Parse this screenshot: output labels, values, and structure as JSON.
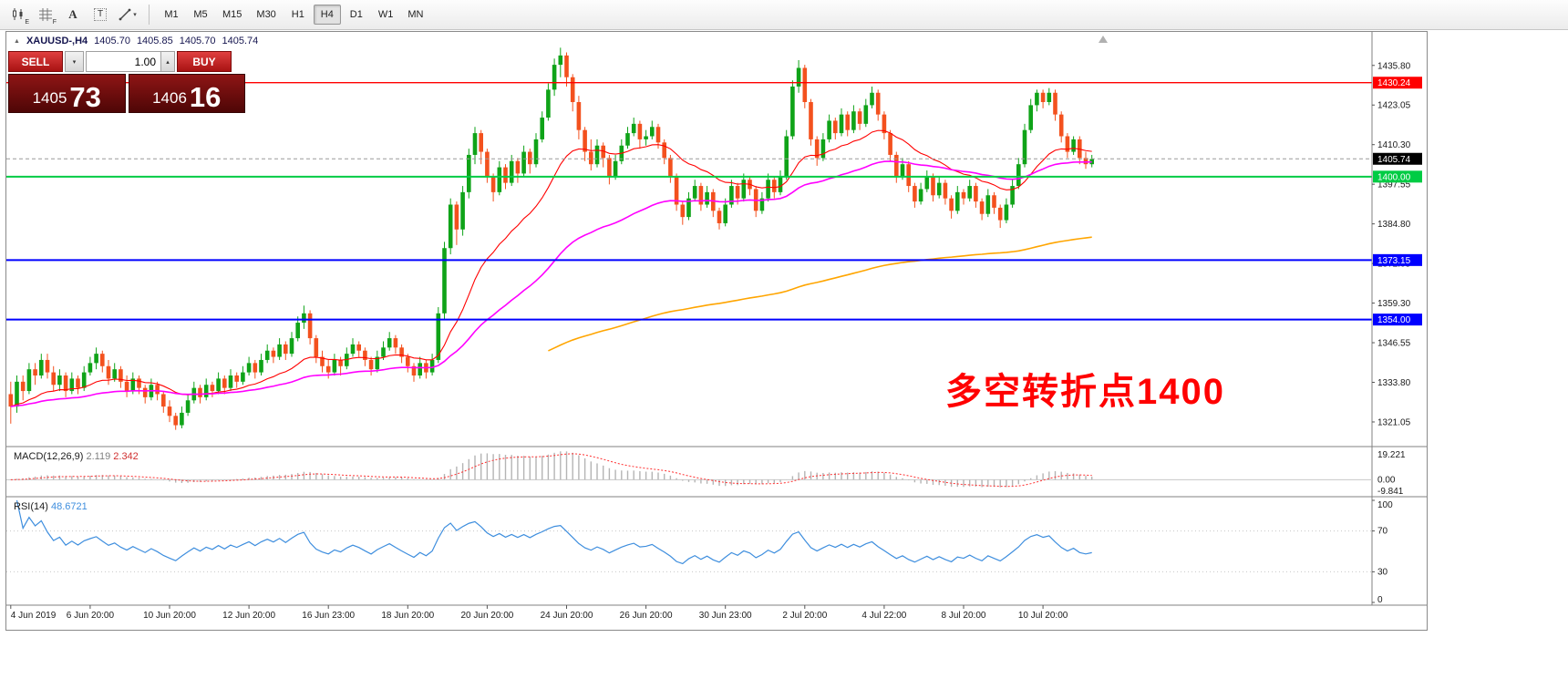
{
  "toolbar": {
    "timeframes": [
      "M1",
      "M5",
      "M15",
      "M30",
      "H1",
      "H4",
      "D1",
      "W1",
      "MN"
    ],
    "active_timeframe": "H4",
    "letter_a": "A",
    "letter_t": "T",
    "sub_e": "E",
    "sub_f": "F"
  },
  "icons": {
    "dropdown_caret": "▾",
    "spinner_up": "▴",
    "collapse_arrow": "▲"
  },
  "header": {
    "symbol": "XAUUSD-,H4",
    "open": "1405.70",
    "high": "1405.85",
    "low": "1405.70",
    "close": "1405.74"
  },
  "trade_panel": {
    "sell_label": "SELL",
    "buy_label": "BUY",
    "lot_value": "1.00",
    "sell_price": "1405",
    "sell_pips": "73",
    "buy_price": "1406",
    "buy_pips": "16"
  },
  "annotation": {
    "text": "多空转折点1400"
  },
  "colors": {
    "up": "#0FA318",
    "down": "#F3511E",
    "macd_hist": "#B4B4B4",
    "macd_signal": "#FF3030",
    "rsi": "#3E8EDE",
    "price_marker_bg": "#000000"
  },
  "chart_data": {
    "type": "candlestick",
    "symbol": "XAUUSD-",
    "timeframe": "H4",
    "price_axis": {
      "min": 1314,
      "max": 1446,
      "ticks": [
        1435.8,
        1423.05,
        1410.3,
        1397.55,
        1384.8,
        1372.05,
        1359.3,
        1346.55,
        1333.8,
        1321.05
      ]
    },
    "hlines": [
      {
        "price": 1430.24,
        "color": "#FF0000",
        "label": "1430.24",
        "width": 1.4
      },
      {
        "price": 1400.0,
        "color": "#00CC44",
        "label": "1400.00",
        "width": 2
      },
      {
        "price": 1373.15,
        "color": "#0000FF",
        "label": "1373.15",
        "width": 2
      },
      {
        "price": 1354.0,
        "color": "#0000FF",
        "label": "1354.00",
        "width": 2
      }
    ],
    "current_price": {
      "value": 1405.74,
      "label": "1405.74"
    },
    "moving_averages": [
      {
        "name": "ma-fast",
        "period": 20,
        "color": "#FF0000",
        "width": 1.1,
        "from": 0
      },
      {
        "name": "ma-mid",
        "period": 55,
        "color": "#FF00FF",
        "width": 1.6,
        "from": 0
      },
      {
        "name": "ma-slow",
        "period": 200,
        "color": "#FFA500",
        "width": 1.6,
        "from": 88
      }
    ],
    "candles": [
      [
        1330,
        1334,
        1320.5,
        1326
      ],
      [
        1326,
        1336,
        1324,
        1334
      ],
      [
        1334,
        1336,
        1328,
        1331
      ],
      [
        1331,
        1340,
        1330,
        1338
      ],
      [
        1338,
        1340,
        1333,
        1336
      ],
      [
        1336,
        1343,
        1335,
        1341
      ],
      [
        1341,
        1343,
        1335,
        1337
      ],
      [
        1337,
        1339,
        1331,
        1333
      ],
      [
        1333,
        1338,
        1331,
        1336
      ],
      [
        1336,
        1337,
        1329,
        1331
      ],
      [
        1331,
        1337,
        1330,
        1335
      ],
      [
        1335,
        1336,
        1330,
        1332
      ],
      [
        1332,
        1339,
        1331,
        1337
      ],
      [
        1337,
        1342,
        1336,
        1340
      ],
      [
        1340,
        1345,
        1338,
        1343
      ],
      [
        1343,
        1344,
        1337,
        1339
      ],
      [
        1339,
        1341,
        1333,
        1335
      ],
      [
        1335,
        1340,
        1334,
        1338
      ],
      [
        1338,
        1339,
        1332,
        1334
      ],
      [
        1334,
        1336,
        1329,
        1331
      ],
      [
        1331,
        1337,
        1330,
        1335
      ],
      [
        1335,
        1336,
        1330,
        1332
      ],
      [
        1332,
        1333,
        1327,
        1329
      ],
      [
        1329,
        1335,
        1328,
        1333
      ],
      [
        1333,
        1334,
        1328,
        1330
      ],
      [
        1330,
        1331,
        1324,
        1326
      ],
      [
        1326,
        1328,
        1321,
        1323
      ],
      [
        1323,
        1324,
        1318.5,
        1320
      ],
      [
        1320,
        1326,
        1319,
        1324
      ],
      [
        1324,
        1330,
        1323,
        1328
      ],
      [
        1328,
        1334,
        1327,
        1332
      ],
      [
        1332,
        1333,
        1327,
        1329
      ],
      [
        1329,
        1335,
        1328,
        1333
      ],
      [
        1333,
        1334,
        1329,
        1331
      ],
      [
        1331,
        1337,
        1330,
        1335
      ],
      [
        1335,
        1336,
        1330,
        1332
      ],
      [
        1332,
        1338,
        1331,
        1336
      ],
      [
        1336,
        1337,
        1332,
        1334
      ],
      [
        1334,
        1339,
        1333,
        1337
      ],
      [
        1337,
        1342,
        1336,
        1340
      ],
      [
        1340,
        1341,
        1335,
        1337
      ],
      [
        1337,
        1343,
        1336,
        1341
      ],
      [
        1341,
        1346,
        1340,
        1344
      ],
      [
        1344,
        1345,
        1340,
        1342
      ],
      [
        1342,
        1348,
        1341,
        1346
      ],
      [
        1346,
        1347,
        1341,
        1343
      ],
      [
        1343,
        1350,
        1342,
        1348
      ],
      [
        1348,
        1355,
        1347,
        1353
      ],
      [
        1353,
        1358.5,
        1351,
        1356
      ],
      [
        1356,
        1357,
        1346,
        1348
      ],
      [
        1348,
        1349,
        1340,
        1342
      ],
      [
        1342,
        1344,
        1337,
        1339
      ],
      [
        1339,
        1341,
        1335,
        1337
      ],
      [
        1337,
        1343,
        1336,
        1341
      ],
      [
        1341,
        1342,
        1336,
        1339
      ],
      [
        1339,
        1345,
        1338,
        1343
      ],
      [
        1343,
        1348,
        1342,
        1346
      ],
      [
        1346,
        1347,
        1342,
        1344
      ],
      [
        1344,
        1345,
        1339,
        1341
      ],
      [
        1341,
        1342,
        1336,
        1338
      ],
      [
        1338,
        1344,
        1337,
        1342
      ],
      [
        1342,
        1347,
        1341,
        1345
      ],
      [
        1345,
        1350,
        1344,
        1348
      ],
      [
        1348,
        1349,
        1343,
        1345
      ],
      [
        1345,
        1346,
        1340,
        1342
      ],
      [
        1342,
        1343,
        1337,
        1339
      ],
      [
        1339,
        1340,
        1334,
        1336
      ],
      [
        1336,
        1342,
        1335,
        1340
      ],
      [
        1340,
        1341,
        1335,
        1337
      ],
      [
        1337,
        1343,
        1336,
        1341
      ],
      [
        1341,
        1358,
        1340,
        1356
      ],
      [
        1356,
        1379,
        1354,
        1377
      ],
      [
        1377,
        1393,
        1375,
        1391
      ],
      [
        1391,
        1392,
        1378,
        1383
      ],
      [
        1383,
        1397,
        1381,
        1395
      ],
      [
        1395,
        1409,
        1393,
        1407
      ],
      [
        1407,
        1416,
        1404,
        1414
      ],
      [
        1414,
        1415,
        1404,
        1408
      ],
      [
        1408,
        1409,
        1398,
        1400
      ],
      [
        1400,
        1401,
        1392,
        1395
      ],
      [
        1395,
        1405,
        1394,
        1403
      ],
      [
        1403,
        1404,
        1396,
        1398
      ],
      [
        1398,
        1407,
        1397,
        1405
      ],
      [
        1405,
        1406,
        1398,
        1401
      ],
      [
        1401,
        1410,
        1400,
        1408
      ],
      [
        1408,
        1409,
        1401,
        1404
      ],
      [
        1404,
        1414,
        1403,
        1412
      ],
      [
        1412,
        1421,
        1411,
        1419
      ],
      [
        1419,
        1430,
        1418,
        1428
      ],
      [
        1428,
        1438,
        1426,
        1436
      ],
      [
        1436,
        1441.5,
        1432,
        1439
      ],
      [
        1439,
        1440,
        1429,
        1432
      ],
      [
        1432,
        1433,
        1421,
        1424
      ],
      [
        1424,
        1426,
        1412,
        1415
      ],
      [
        1415,
        1416,
        1405,
        1408
      ],
      [
        1408,
        1412,
        1402,
        1404
      ],
      [
        1404,
        1412,
        1403,
        1410
      ],
      [
        1410,
        1411,
        1403,
        1406
      ],
      [
        1406,
        1407,
        1397.5,
        1400
      ],
      [
        1400,
        1407,
        1399,
        1405
      ],
      [
        1405,
        1412,
        1404,
        1410
      ],
      [
        1410,
        1416,
        1409,
        1414
      ],
      [
        1414,
        1419,
        1413,
        1417
      ],
      [
        1417,
        1418,
        1409,
        1412
      ],
      [
        1412,
        1415,
        1410,
        1413
      ],
      [
        1413,
        1418,
        1412,
        1416
      ],
      [
        1416,
        1417,
        1409,
        1411
      ],
      [
        1411,
        1412,
        1404,
        1406
      ],
      [
        1406,
        1407,
        1398,
        1400
      ],
      [
        1400,
        1401,
        1389,
        1391
      ],
      [
        1391,
        1392,
        1384.5,
        1387
      ],
      [
        1387,
        1395,
        1386,
        1393
      ],
      [
        1393,
        1399,
        1392,
        1397
      ],
      [
        1397,
        1398,
        1389,
        1391
      ],
      [
        1391,
        1397,
        1390,
        1395
      ],
      [
        1395,
        1396,
        1387,
        1389
      ],
      [
        1389,
        1390,
        1383,
        1385
      ],
      [
        1385,
        1393,
        1384,
        1391
      ],
      [
        1391,
        1399,
        1390,
        1397
      ],
      [
        1397,
        1398,
        1391,
        1393
      ],
      [
        1393,
        1401,
        1392,
        1399
      ],
      [
        1399,
        1400,
        1394,
        1396
      ],
      [
        1396,
        1397,
        1387,
        1389
      ],
      [
        1389,
        1395,
        1388,
        1393
      ],
      [
        1393,
        1401,
        1392,
        1399
      ],
      [
        1399,
        1400,
        1393,
        1395
      ],
      [
        1395,
        1402,
        1394,
        1400
      ],
      [
        1400,
        1415,
        1399,
        1413
      ],
      [
        1413,
        1431,
        1412,
        1429
      ],
      [
        1429,
        1437.5,
        1427,
        1435
      ],
      [
        1435,
        1436,
        1422,
        1424
      ],
      [
        1424,
        1425,
        1410,
        1412
      ],
      [
        1412,
        1413,
        1403.5,
        1406
      ],
      [
        1406,
        1414,
        1405,
        1412
      ],
      [
        1412,
        1420,
        1411,
        1418
      ],
      [
        1418,
        1419,
        1412,
        1414
      ],
      [
        1414,
        1422,
        1413,
        1420
      ],
      [
        1420,
        1421,
        1413,
        1415
      ],
      [
        1415,
        1423,
        1414,
        1421
      ],
      [
        1421,
        1422,
        1415,
        1417
      ],
      [
        1417,
        1425,
        1416,
        1423
      ],
      [
        1423,
        1429,
        1422,
        1427
      ],
      [
        1427,
        1428,
        1418,
        1420
      ],
      [
        1420,
        1421,
        1412,
        1414
      ],
      [
        1414,
        1415,
        1405,
        1407
      ],
      [
        1407,
        1408,
        1398,
        1400
      ],
      [
        1400,
        1406,
        1399,
        1404
      ],
      [
        1404,
        1405,
        1395,
        1397
      ],
      [
        1397,
        1398,
        1390,
        1392
      ],
      [
        1392,
        1398,
        1391,
        1396
      ],
      [
        1396,
        1402,
        1395,
        1400
      ],
      [
        1400,
        1401,
        1392,
        1394
      ],
      [
        1394,
        1400,
        1393,
        1398
      ],
      [
        1398,
        1399,
        1391,
        1393
      ],
      [
        1393,
        1394,
        1386.5,
        1389
      ],
      [
        1389,
        1397,
        1388,
        1395
      ],
      [
        1395,
        1396,
        1391,
        1393
      ],
      [
        1393,
        1399,
        1392,
        1397
      ],
      [
        1397,
        1398,
        1390,
        1392
      ],
      [
        1392,
        1393,
        1386,
        1388
      ],
      [
        1388,
        1396,
        1387,
        1394
      ],
      [
        1394,
        1395,
        1388,
        1390
      ],
      [
        1390,
        1391,
        1383.5,
        1386
      ],
      [
        1386,
        1393,
        1385,
        1391
      ],
      [
        1391,
        1399,
        1390,
        1397
      ],
      [
        1397,
        1406,
        1396,
        1404
      ],
      [
        1404,
        1417,
        1403,
        1415
      ],
      [
        1415,
        1425,
        1414,
        1423
      ],
      [
        1423,
        1428,
        1421,
        1427
      ],
      [
        1427,
        1428,
        1422,
        1424
      ],
      [
        1424,
        1428.5,
        1423,
        1427
      ],
      [
        1427,
        1428,
        1418,
        1420
      ],
      [
        1420,
        1421,
        1411,
        1413
      ],
      [
        1413,
        1414,
        1406,
        1408
      ],
      [
        1408,
        1413,
        1407,
        1412
      ],
      [
        1412,
        1413,
        1404,
        1406
      ],
      [
        1406,
        1408,
        1402.5,
        1404
      ],
      [
        1404,
        1407,
        1403,
        1405.7
      ]
    ],
    "time_axis": [
      {
        "i": 0,
        "label": "4 Jun 2019"
      },
      {
        "i": 13,
        "label": "6 Jun 20:00"
      },
      {
        "i": 26,
        "label": "10 Jun 20:00"
      },
      {
        "i": 39,
        "label": "12 Jun 20:00"
      },
      {
        "i": 52,
        "label": "16 Jun 23:00"
      },
      {
        "i": 65,
        "label": "18 Jun 20:00"
      },
      {
        "i": 78,
        "label": "20 Jun 20:00"
      },
      {
        "i": 91,
        "label": "24 Jun 20:00"
      },
      {
        "i": 104,
        "label": "26 Jun 20:00"
      },
      {
        "i": 117,
        "label": "30 Jun 23:00"
      },
      {
        "i": 130,
        "label": "2 Jul 20:00"
      },
      {
        "i": 143,
        "label": "4 Jul 22:00"
      },
      {
        "i": 156,
        "label": "8 Jul 20:00"
      },
      {
        "i": 169,
        "label": "10 Jul 20:00"
      }
    ],
    "macd": {
      "label": "MACD(12,26,9)",
      "value_main": "2.119",
      "value_signal": "2.342",
      "fast": 12,
      "slow": 26,
      "signal": 9,
      "axis_max_label": "19.221",
      "axis_zero_label": "0.00",
      "axis_min_label": "-9.841",
      "scale_max": 19.221,
      "scale_min": -9.841
    },
    "rsi": {
      "label": "RSI(14)",
      "value": "48.6721",
      "period": 14,
      "levels": [
        70,
        30
      ],
      "axis": [
        "100",
        "70",
        "30",
        "0"
      ],
      "scale_max": 100,
      "scale_min": 0
    }
  }
}
